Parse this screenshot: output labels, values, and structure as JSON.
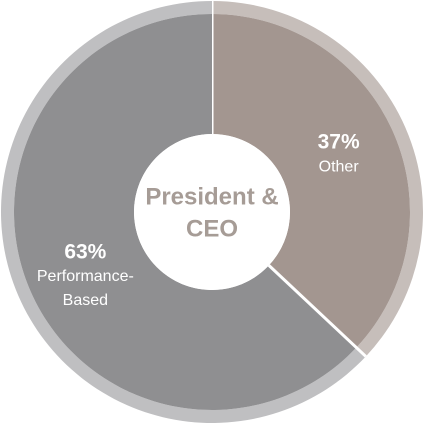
{
  "chart_data": {
    "type": "donut",
    "center_label": [
      "President &",
      "CEO"
    ],
    "categories": [
      "Other",
      "Performance-Based"
    ],
    "values": [
      37,
      63
    ],
    "value_labels": [
      "37%",
      "63%"
    ],
    "colors": [
      "#a39690",
      "#8f8f91"
    ],
    "ring_colors": [
      "#c6beba",
      "#bfbfc1"
    ]
  }
}
